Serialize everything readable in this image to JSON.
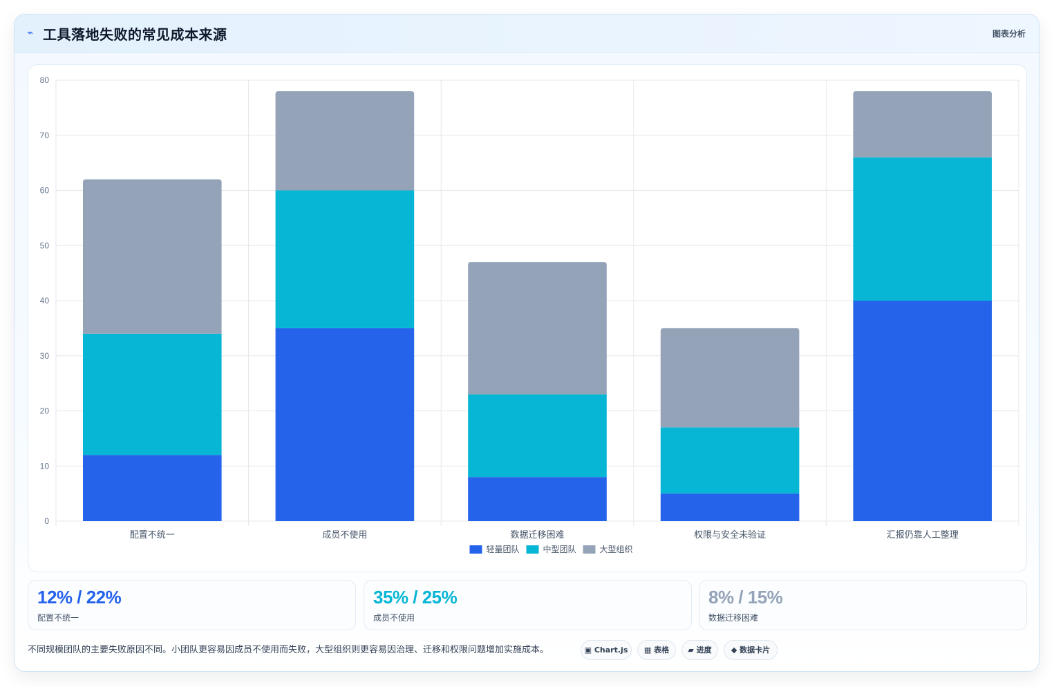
{
  "header": {
    "icon": "bolt-icon",
    "title": "工具落地失败的常见成本来源",
    "tag": "图表分析"
  },
  "colors": {
    "light": "#2563eb",
    "medium": "#06b6d4",
    "large": "#94a3b8",
    "grid": "#e5e7eb",
    "tick": "#64748b"
  },
  "chart_data": {
    "type": "bar",
    "stacked": true,
    "categories": [
      "配置不统一",
      "成员不使用",
      "数据迁移困难",
      "权限与安全未验证",
      "汇报仍靠人工整理"
    ],
    "series": [
      {
        "name": "轻量团队",
        "values": [
          12,
          35,
          8,
          5,
          40
        ],
        "color": "#2563eb"
      },
      {
        "name": "中型团队",
        "values": [
          22,
          25,
          15,
          12,
          26
        ],
        "color": "#06b6d4"
      },
      {
        "name": "大型组织",
        "values": [
          28,
          18,
          24,
          18,
          12
        ],
        "color": "#94a3b8"
      }
    ],
    "ylim": [
      0,
      80
    ],
    "yticks": [
      0,
      10,
      20,
      30,
      40,
      50,
      60,
      70,
      80
    ],
    "grid": true,
    "legend": "bottom-center"
  },
  "stats": [
    {
      "value": "12% / 22%",
      "label": "配置不统一",
      "color": "#2563eb"
    },
    {
      "value": "35% / 25%",
      "label": "成员不使用",
      "color": "#06b6d4"
    },
    {
      "value": "8% / 15%",
      "label": "数据迁移困难",
      "color": "#94a3b8"
    }
  ],
  "footer": {
    "note": "不同规模团队的主要失败原因不同。小团队更容易因成员不使用而失败，大型组织则更容易因治理、迁移和权限问题增加实施成本。",
    "chips": [
      {
        "icon": "chart-icon",
        "glyph": "▣",
        "label": "Chart.js"
      },
      {
        "icon": "table-icon",
        "glyph": "▦",
        "label": "表格"
      },
      {
        "icon": "progress-icon",
        "glyph": "▰",
        "label": "进度"
      },
      {
        "icon": "data-card-icon",
        "glyph": "◆",
        "label": "数据卡片"
      }
    ]
  }
}
